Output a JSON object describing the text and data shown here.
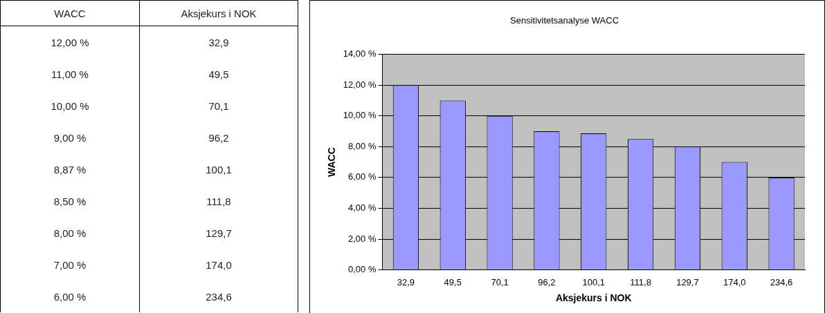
{
  "chart_data": [
    {
      "type": "other",
      "annotations": [
        "WACC",
        "Aksjekurs i NOK",
        "12,00 %",
        "32,9",
        "11,00 %",
        "49,5",
        "10,00 %",
        "70,1",
        "9,00 %",
        "96,2",
        "8,87 %",
        "100,1",
        "8,50 %",
        "111,8",
        "8,00 %",
        "129,7",
        "7,00 %",
        "174,0",
        "6,00 %",
        "234,6"
      ]
    },
    {
      "type": "bar",
      "title": "Sensitivitetsanalyse WACC",
      "xlabel": "Aksjekurs i NOK",
      "ylabel": "WACC",
      "categories": [
        "32,9",
        "49,5",
        "70,1",
        "96,2",
        "100,1",
        "111,8",
        "129,7",
        "174,0",
        "234,6"
      ],
      "values": [
        12,
        11,
        10,
        9,
        8.87,
        8.5,
        8,
        7,
        6
      ],
      "color": "#9999ff",
      "ylim": [
        0,
        14
      ],
      "yticks": [
        {
          "value": 0,
          "label": "0,00 %"
        },
        {
          "value": 2,
          "label": "2,00 %"
        },
        {
          "value": 4,
          "label": "4,00 %"
        },
        {
          "value": 6,
          "label": "6,00 %"
        },
        {
          "value": 8,
          "label": "8,00 %"
        },
        {
          "value": 10,
          "label": "10,00 %"
        },
        {
          "value": 12,
          "label": "12,00 %"
        },
        {
          "value": 14,
          "label": "14,00 %"
        }
      ],
      "grid": "y",
      "legend": false
    }
  ]
}
